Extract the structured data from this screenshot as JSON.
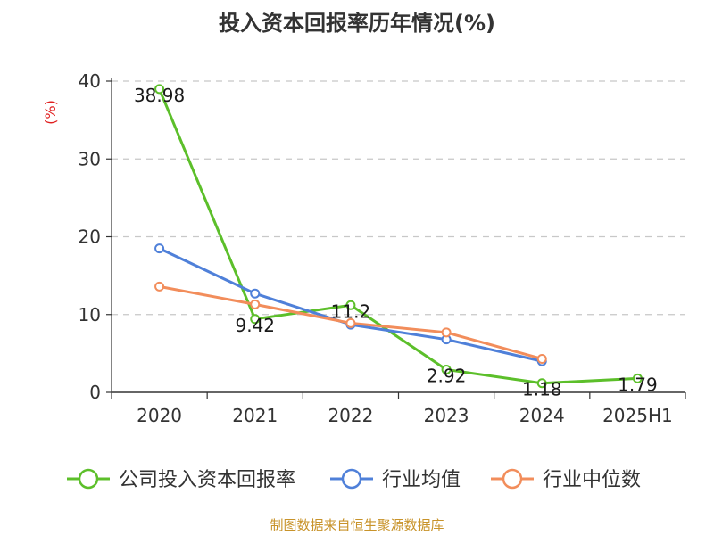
{
  "chart_data": {
    "type": "line",
    "title": "投入资本回报率历年情况(%)",
    "ylabel": "(%)",
    "categories": [
      "2020",
      "2021",
      "2022",
      "2023",
      "2024",
      "2025H1"
    ],
    "ylim": [
      0,
      40
    ],
    "yticks": [
      0,
      10,
      20,
      30,
      40
    ],
    "grid": true,
    "legend_position": "bottom",
    "series": [
      {
        "name": "公司投入资本回报率",
        "color": "#5cbf2a",
        "values": [
          38.98,
          9.42,
          11.2,
          2.92,
          1.18,
          1.79
        ],
        "labels": [
          "38.98",
          "9.42",
          "11.2",
          "2.92",
          "1.18",
          "1.79"
        ]
      },
      {
        "name": "行业均值",
        "color": "#4f80d9",
        "values": [
          18.5,
          12.7,
          8.7,
          6.8,
          4.0,
          null
        ]
      },
      {
        "name": "行业中位数",
        "color": "#f28d5b",
        "values": [
          13.6,
          11.3,
          8.9,
          7.7,
          4.3,
          null
        ]
      }
    ],
    "source": "制图数据来自恒生聚源数据库"
  }
}
